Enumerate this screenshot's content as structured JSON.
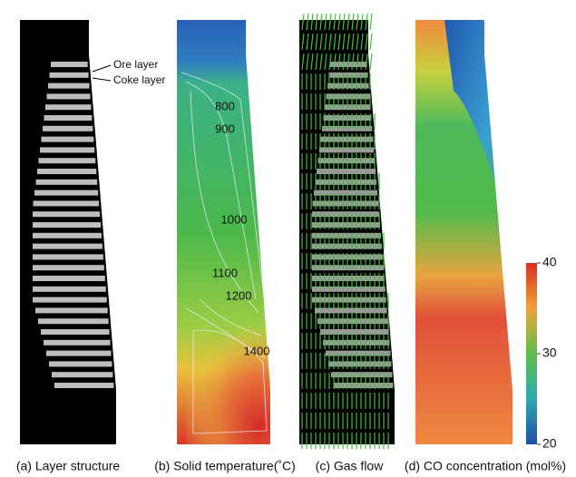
{
  "panels": [
    {
      "caption": "(a) Layer structure",
      "annotations": [
        "Ore layer",
        "Coke layer"
      ]
    },
    {
      "caption": "(b) Solid temperature(˚C)",
      "contour_labels": [
        "800",
        "900",
        "1000",
        "1100",
        "1200",
        "1400"
      ]
    },
    {
      "caption": "(c) Gas flow"
    },
    {
      "caption": "(d) CO concentration (mol%)"
    }
  ],
  "colorbar": {
    "range": [
      20,
      40
    ],
    "ticks": [
      20,
      30,
      40
    ]
  }
}
